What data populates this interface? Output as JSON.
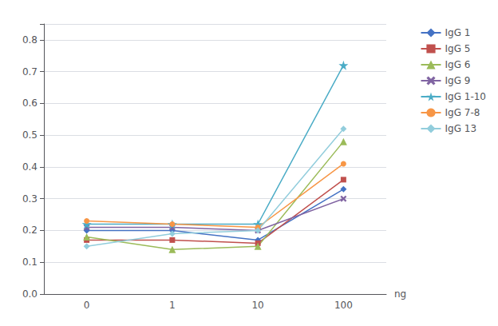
{
  "chart_data": {
    "type": "line",
    "categories": [
      "0",
      "1",
      "10",
      "100"
    ],
    "xlabel": "ng",
    "series": [
      {
        "name": "IgG 1",
        "color": "#4472C4",
        "marker": "diamond",
        "values": [
          0.2,
          0.2,
          0.17,
          0.33
        ]
      },
      {
        "name": "IgG 5",
        "color": "#C0504D",
        "marker": "square",
        "values": [
          0.17,
          0.17,
          0.16,
          0.36
        ]
      },
      {
        "name": "IgG 6",
        "color": "#9BBB59",
        "marker": "triangle",
        "values": [
          0.18,
          0.14,
          0.15,
          0.48
        ]
      },
      {
        "name": "IgG 9",
        "color": "#8064A2",
        "marker": "x",
        "values": [
          0.21,
          0.21,
          0.2,
          0.3
        ]
      },
      {
        "name": "IgG 1-10",
        "color": "#4BACC6",
        "marker": "star",
        "values": [
          0.22,
          0.22,
          0.22,
          0.72
        ]
      },
      {
        "name": "IgG 7-8",
        "color": "#F79646",
        "marker": "circle",
        "values": [
          0.23,
          0.22,
          0.21,
          0.41
        ]
      },
      {
        "name": "IgG 13",
        "color": "#92CDDC",
        "marker": "diamond",
        "values": [
          0.15,
          0.19,
          0.2,
          0.52
        ]
      }
    ],
    "ylim": [
      0,
      0.85
    ],
    "yticks": [
      {
        "value": 0,
        "label": "0.0"
      },
      0.1,
      0.2,
      0.3,
      0.4,
      0.5,
      0.6,
      0.7,
      0.8
    ],
    "grid": true,
    "legend": "right"
  }
}
